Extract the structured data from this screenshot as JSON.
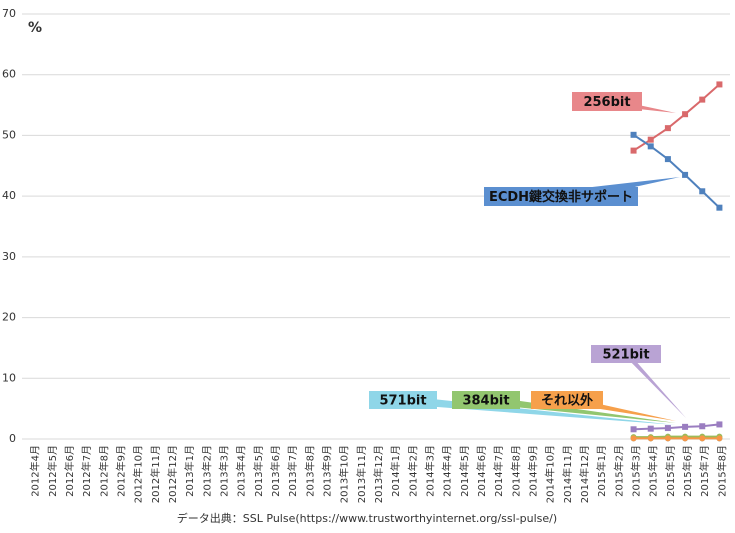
{
  "chart_data": {
    "type": "line",
    "y_label": "%",
    "source": "データ出典：SSL Pulse(https://www.trustworthyinternet.org/ssl-pulse/)",
    "categories": [
      "2012年4月",
      "2012年5月",
      "2012年6月",
      "2012年7月",
      "2012年8月",
      "2012年9月",
      "2012年10月",
      "2012年11月",
      "2012年12月",
      "2013年1月",
      "2013年2月",
      "2013年3月",
      "2013年4月",
      "2013年5月",
      "2013年6月",
      "2013年7月",
      "2013年8月",
      "2013年9月",
      "2013年10月",
      "2013年11月",
      "2013年12月",
      "2014年1月",
      "2014年2月",
      "2014年3月",
      "2014年4月",
      "2014年5月",
      "2014年6月",
      "2014年7月",
      "2014年8月",
      "2014年9月",
      "2014年10月",
      "2014年11月",
      "2014年12月",
      "2015年1月",
      "2015年2月",
      "2015年3月",
      "2015年4月",
      "2015年5月",
      "2015年6月",
      "2015年7月",
      "2015年8月"
    ],
    "series": [
      {
        "name": "256bit",
        "color": "#d9696b",
        "values": [
          null,
          null,
          null,
          null,
          null,
          null,
          null,
          null,
          null,
          null,
          null,
          null,
          null,
          null,
          null,
          null,
          null,
          null,
          null,
          null,
          null,
          null,
          null,
          null,
          null,
          null,
          null,
          null,
          null,
          null,
          null,
          null,
          null,
          null,
          null,
          47.5,
          49.3,
          51.2,
          53.5,
          55.9,
          58.4
        ]
      },
      {
        "name": "ECDH鍵交換非サポート",
        "color": "#4f81bd",
        "values": [
          null,
          null,
          null,
          null,
          null,
          null,
          null,
          null,
          null,
          null,
          null,
          null,
          null,
          null,
          null,
          null,
          null,
          null,
          null,
          null,
          null,
          null,
          null,
          null,
          null,
          null,
          null,
          null,
          null,
          null,
          null,
          null,
          null,
          null,
          null,
          50.1,
          48.2,
          46.1,
          43.5,
          40.8,
          38.1
        ]
      },
      {
        "name": "521bit",
        "color": "#9a7dc0",
        "values": [
          null,
          null,
          null,
          null,
          null,
          null,
          null,
          null,
          null,
          null,
          null,
          null,
          null,
          null,
          null,
          null,
          null,
          null,
          null,
          null,
          null,
          null,
          null,
          null,
          null,
          null,
          null,
          null,
          null,
          null,
          null,
          null,
          null,
          null,
          null,
          1.6,
          1.7,
          1.8,
          2.0,
          2.1,
          2.4
        ]
      },
      {
        "name": "571bit",
        "color": "#4bacc6",
        "values": [
          null,
          null,
          null,
          null,
          null,
          null,
          null,
          null,
          null,
          null,
          null,
          null,
          null,
          null,
          null,
          null,
          null,
          null,
          null,
          null,
          null,
          null,
          null,
          null,
          null,
          null,
          null,
          null,
          null,
          null,
          null,
          null,
          null,
          null,
          null,
          0.1,
          0.1,
          0.1,
          0.1,
          0.1,
          0.1
        ]
      },
      {
        "name": "384bit",
        "color": "#9bbb59",
        "values": [
          null,
          null,
          null,
          null,
          null,
          null,
          null,
          null,
          null,
          null,
          null,
          null,
          null,
          null,
          null,
          null,
          null,
          null,
          null,
          null,
          null,
          null,
          null,
          null,
          null,
          null,
          null,
          null,
          null,
          null,
          null,
          null,
          null,
          null,
          null,
          0.3,
          0.3,
          0.4,
          0.4,
          0.4,
          0.4
        ]
      },
      {
        "name": "それ以外",
        "color": "#f79646",
        "values": [
          null,
          null,
          null,
          null,
          null,
          null,
          null,
          null,
          null,
          null,
          null,
          null,
          null,
          null,
          null,
          null,
          null,
          null,
          null,
          null,
          null,
          null,
          null,
          null,
          null,
          null,
          null,
          null,
          null,
          null,
          null,
          null,
          null,
          null,
          null,
          0.1,
          0.1,
          0.1,
          0.1,
          0.1,
          0.1
        ]
      }
    ],
    "ylim": [
      0,
      70
    ],
    "yticks": [
      0,
      10,
      20,
      30,
      40,
      50,
      60,
      70
    ],
    "grid": true
  }
}
